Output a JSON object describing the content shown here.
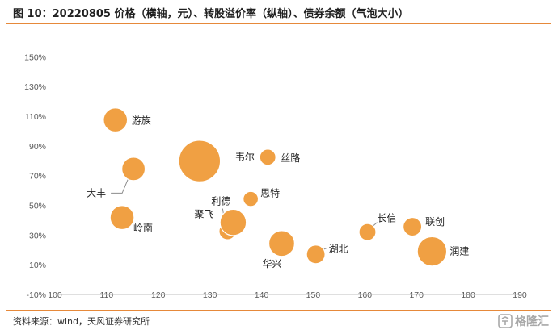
{
  "title": "图 10：20220805 价格（横轴，元）、转股溢价率（纵轴）、债券余额（气泡大小）",
  "source": "资料来源：wind，天风证券研究所",
  "watermark": "格隆汇",
  "colors": {
    "accent": "#e6893a",
    "bubble_fill": "#f0a043",
    "bubble_stroke": "#ffffff",
    "leader": "#8c8c8c"
  },
  "chart_data": {
    "type": "bubble",
    "x_ticks": [
      "100",
      "110",
      "120",
      "130",
      "140",
      "150",
      "160",
      "170",
      "180",
      "190"
    ],
    "y_ticks": [
      "-10%",
      "10%",
      "30%",
      "50%",
      "70%",
      "90%",
      "110%",
      "130%",
      "150%"
    ],
    "xlim": [
      100,
      190
    ],
    "ylim": [
      -10,
      160
    ],
    "grid": false,
    "points": [
      {
        "name": "游族",
        "x": 111.7,
        "y": 107.5,
        "size": 2.0
      },
      {
        "name": "大丰",
        "x": 115.2,
        "y": 74.5,
        "size": 1.9
      },
      {
        "name": "岭南",
        "x": 113.0,
        "y": 41.8,
        "size": 2.0
      },
      {
        "name": "韦尔",
        "x": 128.0,
        "y": 79.8,
        "size": 6.0
      },
      {
        "name": "丝路",
        "x": 141.2,
        "y": 82.4,
        "size": 0.9
      },
      {
        "name": "利德",
        "x": 133.4,
        "y": 32.6,
        "size": 1.0
      },
      {
        "name": "思特",
        "x": 137.9,
        "y": 54.3,
        "size": 0.8
      },
      {
        "name": "聚飞",
        "x": 134.5,
        "y": 38.5,
        "size": 2.4
      },
      {
        "name": "华兴",
        "x": 143.9,
        "y": 24.3,
        "size": 2.3
      },
      {
        "name": "湖北",
        "x": 150.5,
        "y": 17.0,
        "size": 1.2
      },
      {
        "name": "长信",
        "x": 160.5,
        "y": 32.0,
        "size": 1.0
      },
      {
        "name": "联创",
        "x": 169.2,
        "y": 35.6,
        "size": 1.2
      },
      {
        "name": "润建",
        "x": 173.0,
        "y": 19.0,
        "size": 3.0
      }
    ]
  }
}
